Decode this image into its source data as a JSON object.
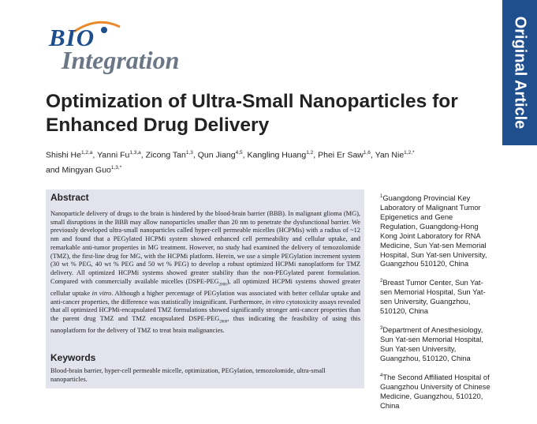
{
  "logo": {
    "line1": "BIO",
    "line2": "Integration"
  },
  "side_tab": "Original Article",
  "title": "Optimization of Ultra-Small Nanoparticles for Enhanced Drug Delivery",
  "authors": [
    {
      "name": "Shishi He",
      "sup": "1,2,a"
    },
    {
      "name": "Yanni Fu",
      "sup": "1,3,a"
    },
    {
      "name": "Zicong Tan",
      "sup": "1,3"
    },
    {
      "name": "Qun Jiang",
      "sup": "4,5"
    },
    {
      "name": "Kangling Huang",
      "sup": "1,2"
    },
    {
      "name": "Phei Er Saw",
      "sup": "1,6"
    },
    {
      "name": "Yan Nie",
      "sup": "1,2,*"
    },
    {
      "name": "Mingyan Guo",
      "sup": "1,3,*"
    }
  ],
  "abstract": {
    "heading": "Abstract",
    "p1": "Nanoparticle delivery of drugs to the brain is hindered by the blood-brain barrier (BBB). In malignant glioma (MG), small disruptions in the BBB may allow nanoparticles smaller than 20 nm to penetrate the dysfunctional barrier. We previously developed ultra-small nanoparticles called hyper-cell permeable micelles (HCPMis) with a radius of ~12 nm and found that a PEGylated HCPMi system showed enhanced cell permeability and cellular uptake, and remarkable anti-tumor properties in MG treatment. However, no study had examined the delivery of temozolomide (TMZ), the first-line drug for MG, with the HCPMi platform. Herein, we use a simple PEGylation increment system (30 wt % PEG, 40 wt % PEG and 50 wt % PEG) to develop a robust optimized HCPMi nanoplatform for TMZ delivery. All optimized HCPMi systems showed greater stability than the non-PEGylated parent formulation. Compared with commercially available micelles (DSPE-PEG",
    "sub1": "2000",
    "p2": "), all optimized HCPMi systems showed greater cellular uptake ",
    "in_vitro_1": "in vitro",
    "p3": ". Although a higher percentage of PEGylation was associated with better cellular uptake and anti-cancer properties, the difference was statistically insignificant. Furthermore, ",
    "in_vitro_2": "in vitro",
    "p4": " cytotoxicity assays revealed that all optimized HCPMi-encapsulated TMZ formulations showed significantly stronger anti-cancer properties than the parent drug TMZ and TMZ encapsulated DSPE-PEG",
    "sub2": "2000",
    "p5": ", thus indicating the feasibility of using this nanoplatform for the delivery of TMZ to treat brain malignancies."
  },
  "keywords": {
    "heading": "Keywords",
    "text": "Blood-brain barrier, hyper-cell permeable micelle, optimization, PEGylation, temozolomide, ultra-small nanoparticles."
  },
  "affiliations": [
    {
      "sup": "1",
      "text": "Guangdong Provincial Key Laboratory of Malignant Tumor Epigenetics and Gene Regulation, Guangdong-Hong Kong Joint Laboratory for RNA Medicine, Sun Yat-sen Memorial Hospital, Sun Yat-sen University, Guangzhou 510120, China"
    },
    {
      "sup": "2",
      "text": "Breast Tumor Center, Sun Yat-sen Memorial Hospital, Sun Yat-sen University, Guangzhou, 510120, China"
    },
    {
      "sup": "3",
      "text": "Department of Anesthesiology, Sun Yat-sen Memorial Hospital, Sun Yat-sen University, Guangzhou, 510120, China"
    },
    {
      "sup": "4",
      "text": "The Second Affiliated Hospital of Guangzhou University of Chinese Medicine, Guangzhou, 510120, China"
    }
  ],
  "colors": {
    "brand_blue": "#1f4f8d",
    "box_bg": "#e3e3ee"
  }
}
